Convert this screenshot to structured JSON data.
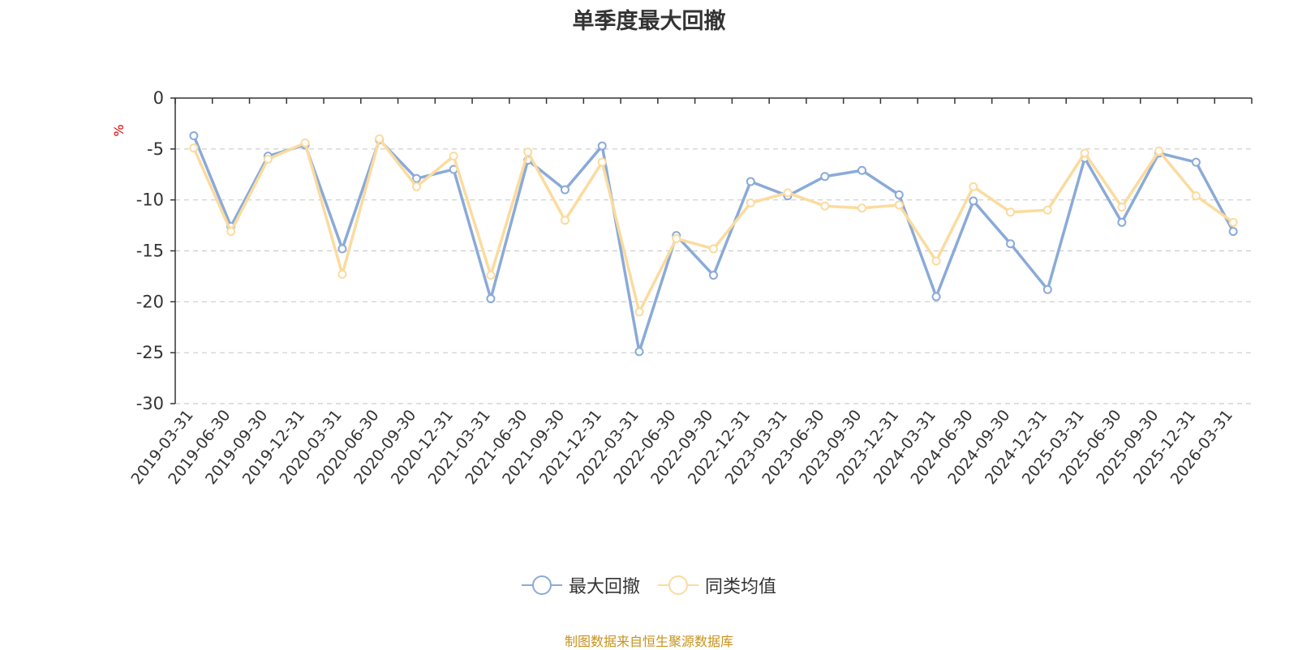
{
  "chart_data": {
    "type": "line",
    "title": "单季度最大回撤",
    "ylabel": "%",
    "xlabel": "",
    "ylim": [
      -30,
      0
    ],
    "yticks": [
      0,
      -5,
      -10,
      -15,
      -20,
      -25,
      -30
    ],
    "grid": true,
    "legend_position": "bottom-center",
    "categories": [
      "2019-03-31",
      "2019-06-30",
      "2019-09-30",
      "2019-12-31",
      "2020-03-31",
      "2020-06-30",
      "2020-09-30",
      "2020-12-31",
      "2021-03-31",
      "2021-06-30",
      "2021-09-30",
      "2021-12-31",
      "2022-03-31",
      "2022-06-30",
      "2022-09-30",
      "2022-12-31",
      "2023-03-31",
      "2023-06-30",
      "2023-09-30",
      "2023-12-31",
      "2024-03-31",
      "2024-06-30",
      "2024-09-30",
      "2024-12-31",
      "2025-03-31",
      "2025-06-30",
      "2025-09-30",
      "2025-12-31",
      "2026-03-31"
    ],
    "series": [
      {
        "name": "最大回撤",
        "color": "#8aaad8",
        "values": [
          -3.7,
          -12.6,
          -5.7,
          -4.6,
          -14.8,
          -4.1,
          -7.9,
          -7.0,
          -19.7,
          -6.1,
          -9.0,
          -4.7,
          -24.9,
          -13.5,
          -17.4,
          -8.2,
          -9.6,
          -7.7,
          -7.1,
          -9.5,
          -19.5,
          -10.1,
          -14.3,
          -18.8,
          -5.9,
          -12.2,
          -5.4,
          -6.3,
          -13.1
        ]
      },
      {
        "name": "同类均值",
        "color": "#fbdb9e",
        "values": [
          -4.9,
          -13.1,
          -6.0,
          -4.4,
          -17.3,
          -4.0,
          -8.7,
          -5.7,
          -17.4,
          -5.3,
          -12.0,
          -6.3,
          -21.0,
          -13.8,
          -14.8,
          -10.3,
          -9.3,
          -10.6,
          -10.8,
          -10.5,
          -16.0,
          -8.7,
          -11.2,
          -11.0,
          -5.4,
          -10.7,
          -5.2,
          -9.6,
          -12.2
        ]
      }
    ]
  },
  "source_note": "制图数据来自恒生聚源数据库"
}
